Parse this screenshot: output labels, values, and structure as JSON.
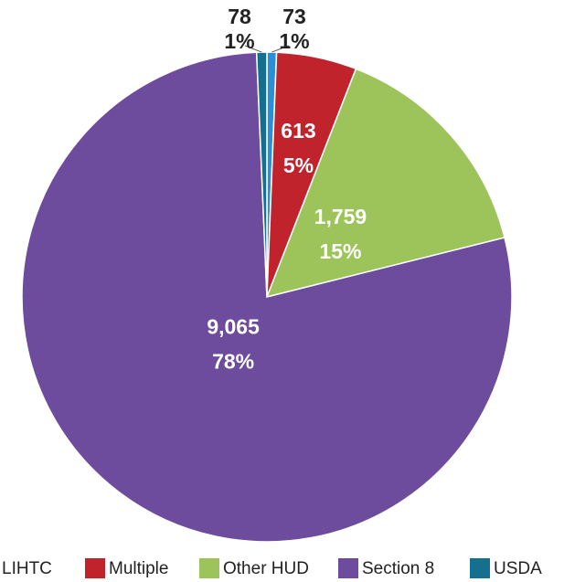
{
  "chart_data": {
    "type": "pie",
    "categories": [
      "LIHTC",
      "Multiple",
      "Other HUD",
      "Section 8",
      "USDA"
    ],
    "values": [
      73,
      613,
      1759,
      9065,
      78
    ],
    "value_labels": [
      "73",
      "613",
      "1,759",
      "9,065",
      "78"
    ],
    "percent_values": [
      1,
      5,
      15,
      78,
      1
    ],
    "percent_labels": [
      "1%",
      "5%",
      "15%",
      "78%",
      "1%"
    ],
    "colors": [
      "#2a8fd4",
      "#c1232d",
      "#9cc45b",
      "#6e4c9d",
      "#156f8f"
    ],
    "legend": "bottom"
  }
}
